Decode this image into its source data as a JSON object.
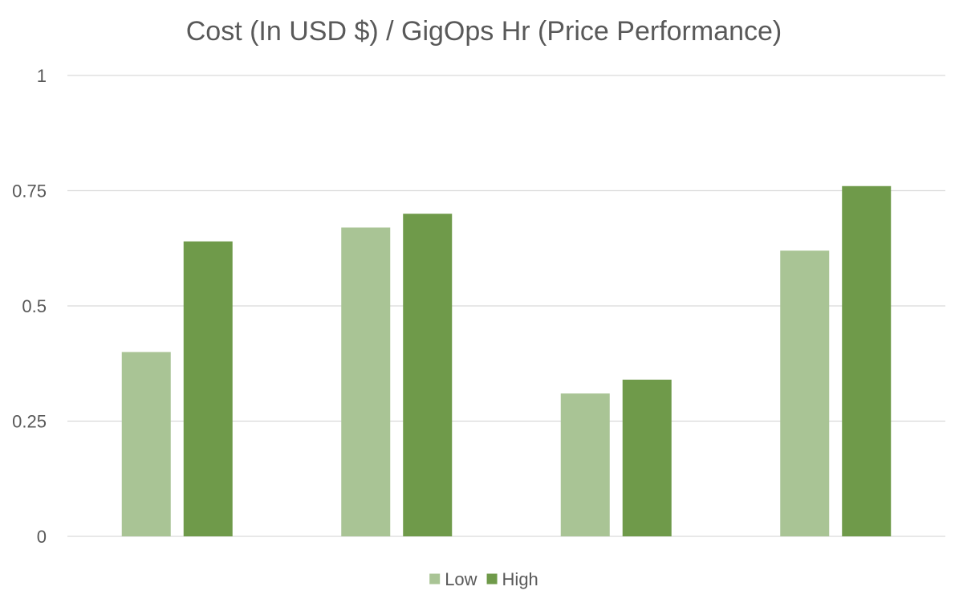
{
  "chart_data": {
    "type": "bar",
    "title": "Cost (In USD $) / GigOps Hr (Price Performance)",
    "xlabel": "",
    "ylabel": "",
    "categories": [
      "",
      "",
      "",
      ""
    ],
    "ylim": [
      0,
      1
    ],
    "yticks": [
      0,
      0.25,
      0.5,
      0.75,
      1
    ],
    "ytick_labels": [
      "0",
      "0.25",
      "0.5",
      "0.75",
      "1"
    ],
    "grid": true,
    "legend_position": "bottom",
    "series": [
      {
        "name": "Low",
        "color": "#a9c495",
        "values": [
          0.4,
          0.67,
          0.31,
          0.62
        ]
      },
      {
        "name": "High",
        "color": "#6f9a4a",
        "values": [
          0.64,
          0.7,
          0.34,
          0.76
        ]
      }
    ]
  }
}
